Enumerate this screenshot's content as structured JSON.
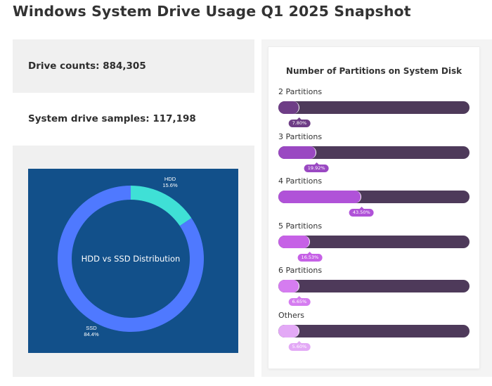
{
  "page": {
    "title": "Windows System Drive Usage Q1 2025 Snapshot"
  },
  "stats": {
    "drive_counts": "Drive counts: 884,305",
    "system_samples": "System drive samples: 117,198"
  },
  "colors": {
    "donut_bg": "#12508a",
    "hdd": "#3fe0d6",
    "ssd": "#4f79ff",
    "track": "#4e3a5a",
    "bars": [
      "#6e3d86",
      "#9a48c2",
      "#b052d8",
      "#c661e6",
      "#d57cf0",
      "#e3a9f6"
    ]
  },
  "chart_data": [
    {
      "type": "pie",
      "title": "HDD vs SSD Distribution",
      "donut": true,
      "slices": [
        {
          "label": "HDD",
          "value": 15.6,
          "value_label": "15.6%"
        },
        {
          "label": "SSD",
          "value": 84.4,
          "value_label": "84.4%"
        }
      ]
    },
    {
      "type": "bar",
      "orientation": "horizontal",
      "title": "Number of Partitions on System Disk",
      "categories": [
        "2 Partitions",
        "3 Partitions",
        "4 Partitions",
        "5 Partitions",
        "6 Partitions",
        "Others"
      ],
      "values": [
        7.8,
        19.92,
        43.5,
        16.53,
        6.65,
        5.6
      ],
      "value_labels": [
        "7.80%",
        "19.92%",
        "43.50%",
        "16.53%",
        "6.65%",
        "5.60%"
      ],
      "xlim": [
        0,
        100
      ]
    }
  ]
}
